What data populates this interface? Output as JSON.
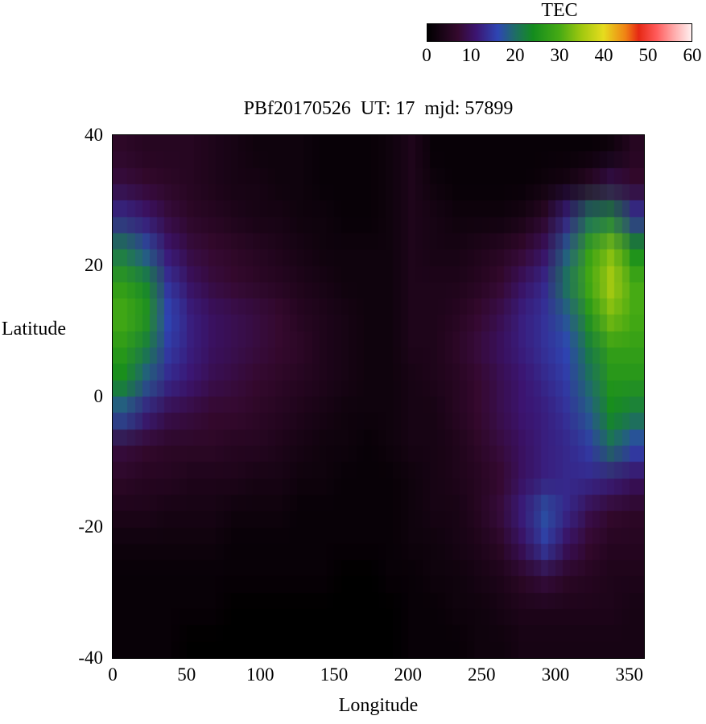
{
  "chart_data": {
    "type": "heatmap",
    "title": "PBf20170526  UT: 17  mjd: 57899",
    "xlabel": "Longitude",
    "ylabel": "Latitude",
    "xlim": [
      0,
      360
    ],
    "ylim": [
      -40,
      40
    ],
    "xticks": [
      "0",
      "50",
      "100",
      "150",
      "200",
      "250",
      "300",
      "350"
    ],
    "yticks": [
      "40",
      "20",
      "0",
      "-20",
      "-40"
    ],
    "grid_on": false,
    "colorbar": {
      "label": "TEC",
      "min": 0,
      "max": 60,
      "ticks": [
        "0",
        "10",
        "20",
        "30",
        "40",
        "50",
        "60"
      ],
      "position": "top-right"
    },
    "grid": {
      "lon_start": 0,
      "lon_end": 360,
      "n_cols": 24,
      "lat_top": 40,
      "lat_bottom": -40,
      "n_rows": 16,
      "units": "TEC",
      "row_order": "top-to-bottom (lat +37.5 to -37.5)"
    },
    "colormap": [
      {
        "v": 0,
        "c": "#000000"
      },
      {
        "v": 7,
        "c": "#35092e"
      },
      {
        "v": 11,
        "c": "#3c1470"
      },
      {
        "v": 16,
        "c": "#2e46b4"
      },
      {
        "v": 20,
        "c": "#1e6e64"
      },
      {
        "v": 24,
        "c": "#148c1e"
      },
      {
        "v": 30,
        "c": "#46aa14"
      },
      {
        "v": 35,
        "c": "#a0c80f"
      },
      {
        "v": 40,
        "c": "#e6dc1e"
      },
      {
        "v": 45,
        "c": "#f08214"
      },
      {
        "v": 48,
        "c": "#e62814"
      },
      {
        "v": 52,
        "c": "#ff5a5a"
      },
      {
        "v": 56,
        "c": "#ffaaaa"
      },
      {
        "v": 60,
        "c": "#fff0f0"
      }
    ],
    "values": [
      [
        6,
        5,
        5,
        5,
        4,
        3,
        2,
        2,
        2,
        1,
        1,
        1,
        2,
        4,
        1,
        1,
        1,
        1,
        1,
        1,
        1,
        1,
        2,
        5
      ],
      [
        8,
        7,
        6,
        5,
        4,
        3,
        3,
        2,
        2,
        1,
        1,
        1,
        2,
        4,
        2,
        1,
        1,
        1,
        1,
        2,
        3,
        6,
        9,
        7
      ],
      [
        13,
        11,
        8,
        6,
        5,
        4,
        3,
        3,
        2,
        2,
        1,
        1,
        2,
        4,
        3,
        2,
        2,
        2,
        3,
        6,
        12,
        20,
        22,
        14
      ],
      [
        21,
        17,
        11,
        8,
        7,
        6,
        5,
        4,
        3,
        2,
        2,
        2,
        2,
        4,
        3,
        3,
        4,
        5,
        7,
        10,
        18,
        28,
        33,
        24
      ],
      [
        27,
        23,
        14,
        10,
        8,
        7,
        6,
        5,
        4,
        3,
        2,
        2,
        2,
        4,
        4,
        4,
        5,
        7,
        10,
        13,
        21,
        30,
        36,
        30
      ],
      [
        30,
        26,
        16,
        12,
        10,
        9,
        8,
        7,
        5,
        4,
        3,
        2,
        2,
        4,
        4,
        5,
        7,
        9,
        12,
        14,
        18,
        26,
        33,
        30
      ],
      [
        27,
        22,
        15,
        12,
        10,
        9,
        8,
        7,
        6,
        4,
        3,
        2,
        2,
        4,
        4,
        6,
        8,
        10,
        12,
        14,
        16,
        22,
        28,
        28
      ],
      [
        24,
        18,
        13,
        11,
        9,
        8,
        7,
        6,
        5,
        4,
        3,
        2,
        2,
        3,
        4,
        5,
        7,
        9,
        11,
        13,
        15,
        20,
        26,
        26
      ],
      [
        17,
        12,
        9,
        8,
        7,
        7,
        6,
        5,
        4,
        3,
        2,
        2,
        2,
        3,
        3,
        5,
        7,
        9,
        11,
        12,
        14,
        18,
        24,
        22
      ],
      [
        8,
        7,
        6,
        6,
        6,
        5,
        5,
        4,
        3,
        2,
        2,
        1,
        2,
        3,
        3,
        4,
        6,
        8,
        10,
        12,
        13,
        15,
        20,
        16
      ],
      [
        6,
        5,
        5,
        4,
        4,
        4,
        3,
        3,
        2,
        2,
        1,
        1,
        1,
        2,
        3,
        4,
        5,
        7,
        10,
        12,
        13,
        13,
        12,
        10
      ],
      [
        4,
        4,
        3,
        3,
        3,
        2,
        2,
        2,
        1,
        1,
        1,
        1,
        1,
        2,
        3,
        3,
        5,
        8,
        12,
        17,
        13,
        9,
        7,
        6
      ],
      [
        2,
        2,
        2,
        2,
        2,
        1,
        1,
        1,
        1,
        1,
        1,
        1,
        1,
        2,
        2,
        3,
        4,
        6,
        10,
        15,
        10,
        7,
        5,
        5
      ],
      [
        1,
        1,
        1,
        1,
        1,
        1,
        1,
        1,
        1,
        1,
        0,
        0,
        1,
        1,
        2,
        2,
        3,
        4,
        6,
        8,
        6,
        5,
        4,
        4
      ],
      [
        1,
        1,
        1,
        1,
        1,
        0,
        0,
        0,
        0,
        0,
        0,
        0,
        0,
        1,
        1,
        2,
        2,
        3,
        4,
        4,
        4,
        4,
        4,
        3
      ],
      [
        1,
        1,
        1,
        0,
        0,
        0,
        0,
        0,
        0,
        0,
        0,
        0,
        0,
        1,
        1,
        1,
        2,
        2,
        3,
        3,
        3,
        3,
        3,
        3
      ]
    ]
  }
}
